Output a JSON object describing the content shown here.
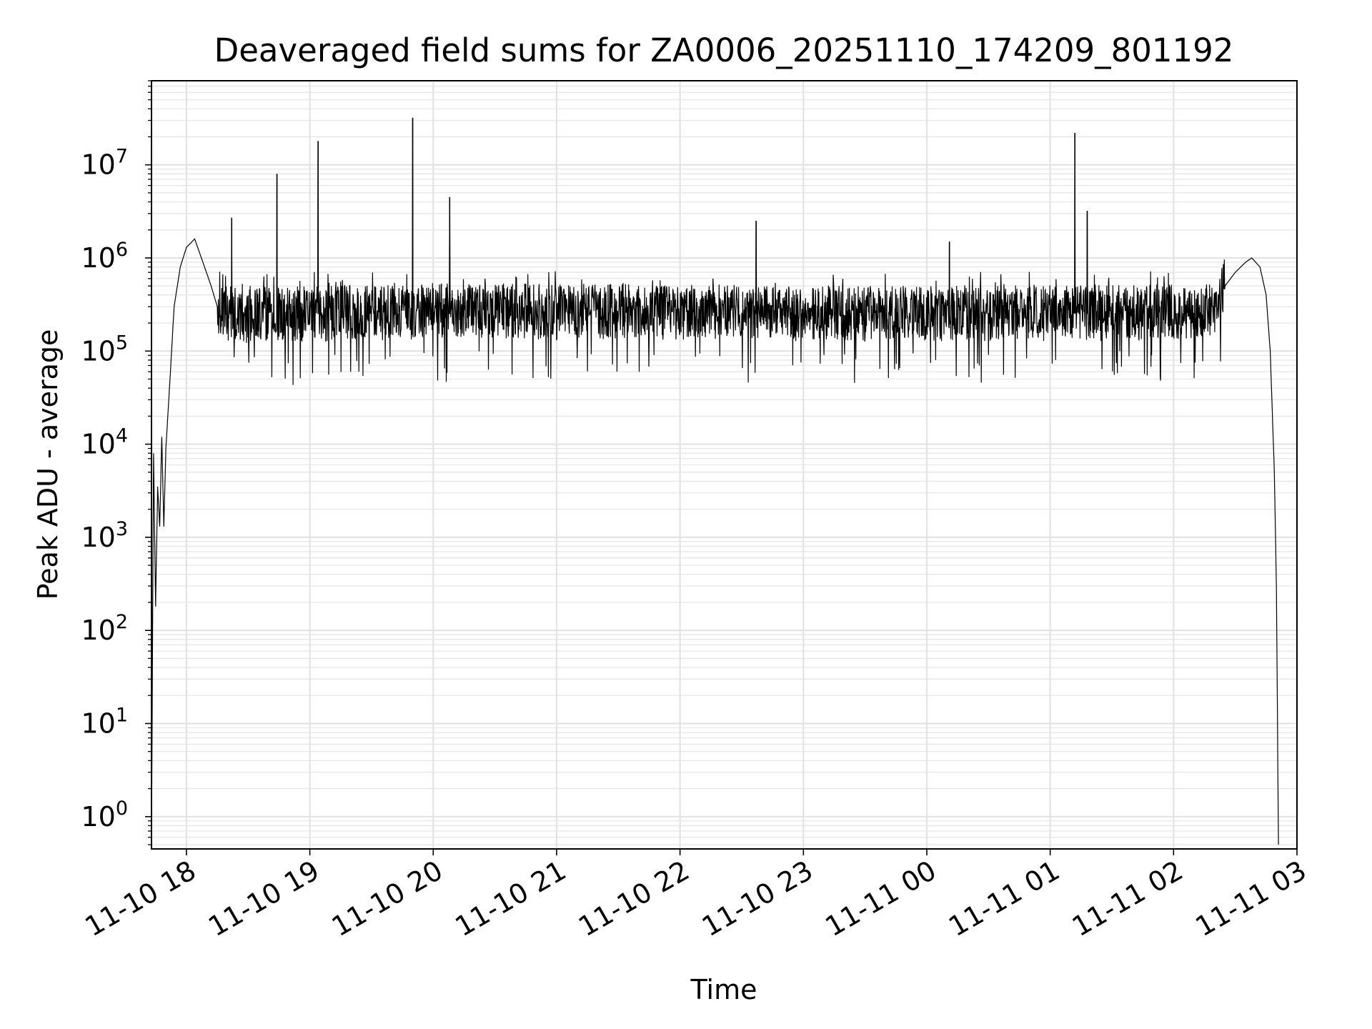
{
  "chart_data": {
    "type": "line",
    "title": "Deaveraged field sums for ZA0006_20251110_174209_801192",
    "xlabel": "Time",
    "ylabel": "Peak ADU - average",
    "yscale": "log",
    "ylim": [
      0.45,
      80000000
    ],
    "xlim": [
      "2025-11-10 17:43",
      "2025-11-11 03:00"
    ],
    "grid": true,
    "grid_minor": true,
    "legend": "none",
    "line_color": "#000000",
    "x_ticks": [
      {
        "t": "2025-11-10 18:00",
        "label": "11-10 18"
      },
      {
        "t": "2025-11-10 19:00",
        "label": "11-10 19"
      },
      {
        "t": "2025-11-10 20:00",
        "label": "11-10 20"
      },
      {
        "t": "2025-11-10 21:00",
        "label": "11-10 21"
      },
      {
        "t": "2025-11-10 22:00",
        "label": "11-10 22"
      },
      {
        "t": "2025-11-10 23:00",
        "label": "11-10 23"
      },
      {
        "t": "2025-11-11 00:00",
        "label": "11-11 00"
      },
      {
        "t": "2025-11-11 01:00",
        "label": "11-11 01"
      },
      {
        "t": "2025-11-11 02:00",
        "label": "11-11 02"
      },
      {
        "t": "2025-11-11 03:00",
        "label": "11-11 03"
      }
    ],
    "y_ticks": [
      {
        "value": 1,
        "base": "10",
        "exp": "0"
      },
      {
        "value": 10,
        "base": "10",
        "exp": "1"
      },
      {
        "value": 100,
        "base": "10",
        "exp": "2"
      },
      {
        "value": 1000,
        "base": "10",
        "exp": "3"
      },
      {
        "value": 10000,
        "base": "10",
        "exp": "4"
      },
      {
        "value": 100000,
        "base": "10",
        "exp": "5"
      },
      {
        "value": 1000000,
        "base": "10",
        "exp": "6"
      },
      {
        "value": 10000000,
        "base": "10",
        "exp": "7"
      }
    ],
    "series": [
      {
        "points": [
          [
            "2025-11-10 17:43",
            0.5
          ],
          [
            "2025-11-10 17:44",
            8000
          ],
          [
            "2025-11-10 17:45",
            180
          ],
          [
            "2025-11-10 17:46",
            3500
          ],
          [
            "2025-11-10 17:47",
            1300
          ],
          [
            "2025-11-10 17:48",
            12000
          ],
          [
            "2025-11-10 17:49",
            1300
          ],
          [
            "2025-11-10 17:50",
            9000
          ],
          [
            "2025-11-10 17:52",
            50000
          ],
          [
            "2025-11-10 17:54",
            300000
          ],
          [
            "2025-11-10 17:57",
            800000
          ],
          [
            "2025-11-10 18:00",
            1300000
          ],
          [
            "2025-11-10 18:04",
            1600000
          ],
          [
            "2025-11-10 18:08",
            900000
          ],
          [
            "2025-11-10 18:12",
            500000
          ],
          [
            "2025-11-10 18:15",
            300000
          ],
          [
            "2025-11-10 18:20",
            260000
          ],
          [
            "2025-11-10 18:30",
            250000
          ],
          [
            "2025-11-10 20:00",
            280000
          ],
          [
            "2025-11-10 22:00",
            270000
          ],
          [
            "2025-11-11 00:00",
            260000
          ],
          [
            "2025-11-11 02:00",
            270000
          ],
          [
            "2025-11-11 02:20",
            280000
          ],
          [
            "2025-11-11 02:25",
            500000
          ],
          [
            "2025-11-11 02:30",
            700000
          ],
          [
            "2025-11-11 02:35",
            900000
          ],
          [
            "2025-11-11 02:38",
            1000000
          ],
          [
            "2025-11-11 02:42",
            800000
          ],
          [
            "2025-11-11 02:45",
            400000
          ],
          [
            "2025-11-11 02:47",
            100000
          ],
          [
            "2025-11-11 02:49",
            5000
          ],
          [
            "2025-11-11 02:50",
            300
          ],
          [
            "2025-11-11 02:51",
            0.5
          ]
        ],
        "spikes": [
          [
            "2025-11-10 18:22",
            2700000
          ],
          [
            "2025-11-10 18:44",
            8000000
          ],
          [
            "2025-11-10 19:04",
            18000000
          ],
          [
            "2025-11-10 19:50",
            32000000
          ],
          [
            "2025-11-10 20:08",
            4500000
          ],
          [
            "2025-11-10 22:37",
            2500000
          ],
          [
            "2025-11-11 00:11",
            1500000
          ],
          [
            "2025-11-11 01:12",
            22000000
          ],
          [
            "2025-11-11 01:18",
            3200000
          ]
        ],
        "noise_band": {
          "t_start": "2025-11-10 18:15",
          "t_end": "2025-11-11 02:25",
          "median": 270000,
          "typical_low": 130000,
          "typical_high": 520000,
          "min": 45000
        }
      }
    ]
  }
}
